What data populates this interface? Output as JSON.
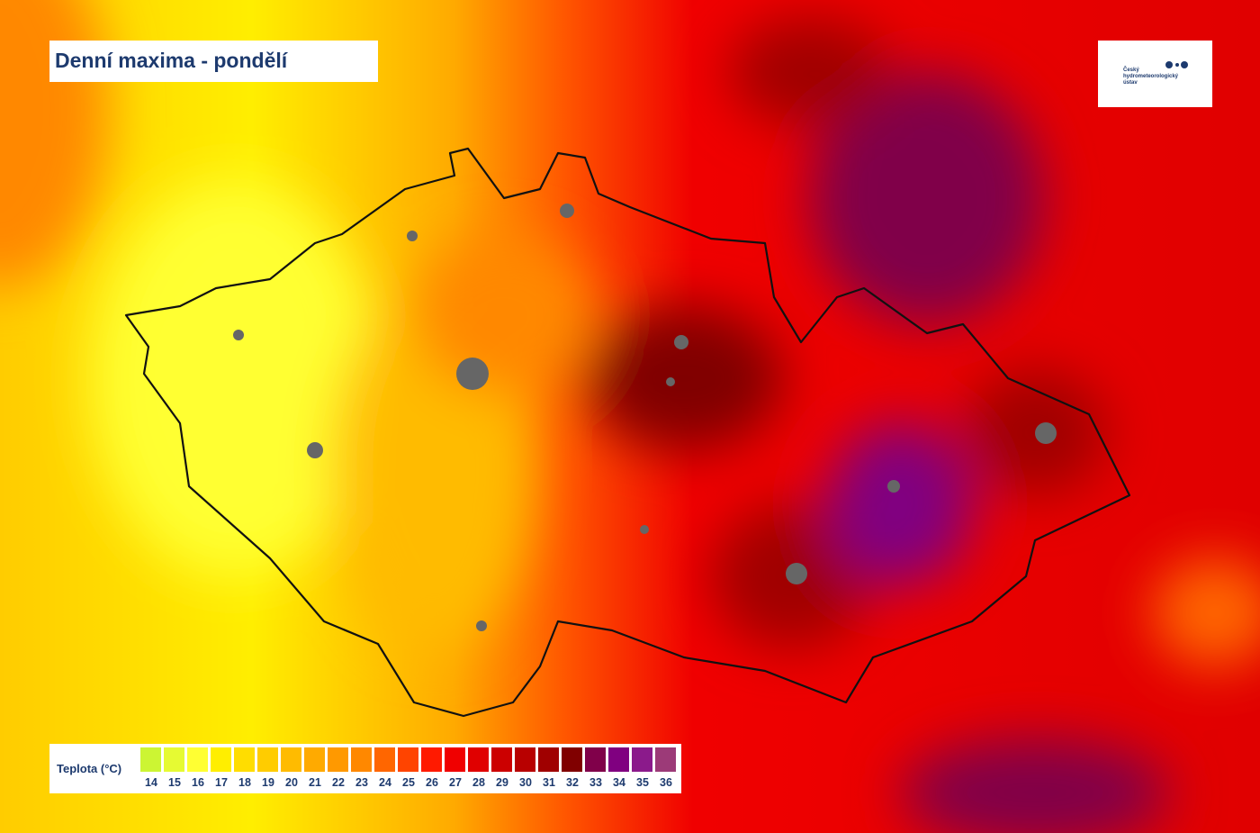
{
  "title": "Denní maxima - pondělí",
  "logo": {
    "text": "Český hydrometeorologický ústav"
  },
  "legend": {
    "label": "Teplota (°C)",
    "items": [
      {
        "value": 14,
        "color": "#ccf533"
      },
      {
        "value": 15,
        "color": "#e6fa33"
      },
      {
        "value": 16,
        "color": "#ffff33"
      },
      {
        "value": 17,
        "color": "#ffee00"
      },
      {
        "value": 18,
        "color": "#ffdd00"
      },
      {
        "value": 19,
        "color": "#ffcc00"
      },
      {
        "value": 20,
        "color": "#ffbb00"
      },
      {
        "value": 21,
        "color": "#ffaa00"
      },
      {
        "value": 22,
        "color": "#ff9900"
      },
      {
        "value": 23,
        "color": "#ff8800"
      },
      {
        "value": 24,
        "color": "#ff6600"
      },
      {
        "value": 25,
        "color": "#ff4400"
      },
      {
        "value": 26,
        "color": "#ff1a00"
      },
      {
        "value": 27,
        "color": "#f00000"
      },
      {
        "value": 28,
        "color": "#e00000"
      },
      {
        "value": 29,
        "color": "#cc0000"
      },
      {
        "value": 30,
        "color": "#b80000"
      },
      {
        "value": 31,
        "color": "#a00000"
      },
      {
        "value": 32,
        "color": "#800000"
      },
      {
        "value": 33,
        "color": "#80004a"
      },
      {
        "value": 34,
        "color": "#800080"
      },
      {
        "value": 35,
        "color": "#8b1a8b"
      },
      {
        "value": 36,
        "color": "#9c3a78"
      }
    ]
  }
}
